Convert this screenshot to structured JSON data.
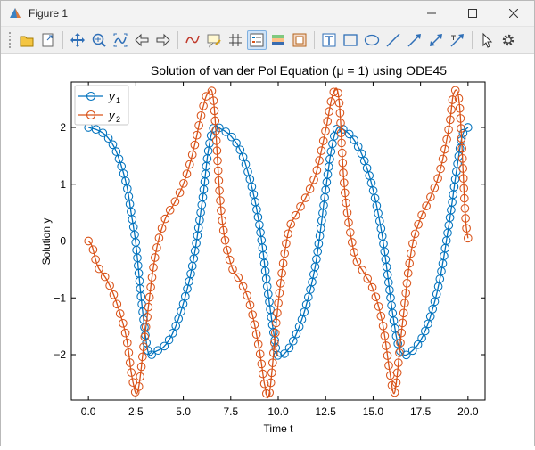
{
  "window": {
    "title": "Figure 1",
    "controls": {
      "minimize": "minimize",
      "maximize": "maximize",
      "close": "close"
    }
  },
  "toolbar": {
    "items": [
      {
        "name": "open-file-icon"
      },
      {
        "name": "save-figure-icon"
      },
      {
        "name": "pan-icon"
      },
      {
        "name": "zoom-in-icon"
      },
      {
        "name": "autoscale-icon"
      },
      {
        "name": "back-icon"
      },
      {
        "name": "forward-icon"
      },
      {
        "name": "data-cursor-icon"
      },
      {
        "name": "annotate-icon"
      },
      {
        "name": "grid-icon"
      },
      {
        "name": "legend-icon",
        "active": true
      },
      {
        "name": "colorbar-icon"
      },
      {
        "name": "border-icon"
      },
      {
        "name": "textbox-icon"
      },
      {
        "name": "rectangle-icon"
      },
      {
        "name": "ellipse-icon"
      },
      {
        "name": "line-icon"
      },
      {
        "name": "arrow-icon"
      },
      {
        "name": "double-arrow-icon"
      },
      {
        "name": "text-arrow-icon"
      },
      {
        "name": "select-pointer-icon"
      },
      {
        "name": "settings-gear-icon"
      }
    ]
  },
  "colors": {
    "series1": "#0072BD",
    "series2": "#D95319"
  },
  "chart_data": {
    "type": "line",
    "title": "Solution of van der Pol Equation (μ = 1) using ODE45",
    "xlabel": "Time t",
    "ylabel": "Solution y",
    "xlim": [
      -0.9,
      20.9
    ],
    "ylim": [
      -2.8,
      2.8
    ],
    "xticks": [
      0,
      2.5,
      5,
      7.5,
      10,
      12.5,
      15,
      17.5,
      20
    ],
    "xtick_labels": [
      "0.0",
      "2.5",
      "5.0",
      "7.5",
      "10.0",
      "12.5",
      "15.0",
      "17.5",
      "20.0"
    ],
    "yticks": [
      -2,
      -1,
      0,
      1,
      2
    ],
    "ytick_labels": [
      "−2",
      "−1",
      "0",
      "1",
      "2"
    ],
    "legend": {
      "position": "top-left",
      "entries": [
        {
          "base": "y",
          "sub": "1"
        },
        {
          "base": "y",
          "sub": "2"
        }
      ]
    },
    "marker": "open-circle",
    "series": [
      {
        "name": "y1",
        "points": [
          [
            0,
            2
          ],
          [
            0.5,
            1.95
          ],
          [
            1,
            1.83
          ],
          [
            1.5,
            1.55
          ],
          [
            2,
            1.0
          ],
          [
            2.25,
            0.5
          ],
          [
            2.5,
            -0.05
          ],
          [
            2.75,
            -0.9
          ],
          [
            3,
            -1.65
          ],
          [
            3.2,
            -2.0
          ],
          [
            3.5,
            -1.95
          ],
          [
            4,
            -1.85
          ],
          [
            4.5,
            -1.58
          ],
          [
            5,
            -1.1
          ],
          [
            5.5,
            -0.4
          ],
          [
            6,
            0.7
          ],
          [
            6.3,
            1.55
          ],
          [
            6.6,
            2.0
          ],
          [
            7,
            1.97
          ],
          [
            7.5,
            1.85
          ],
          [
            8,
            1.6
          ],
          [
            8.5,
            1.1
          ],
          [
            9,
            0.3
          ],
          [
            9.5,
            -1.0
          ],
          [
            9.8,
            -1.7
          ],
          [
            10,
            -2.02
          ],
          [
            10.5,
            -1.92
          ],
          [
            11,
            -1.6
          ],
          [
            11.5,
            -1.1
          ],
          [
            12,
            -0.35
          ],
          [
            12.5,
            0.9
          ],
          [
            12.8,
            1.6
          ],
          [
            13.1,
            1.98
          ],
          [
            13.5,
            1.95
          ],
          [
            14,
            1.78
          ],
          [
            14.5,
            1.45
          ],
          [
            15,
            0.9
          ],
          [
            15.5,
            0.05
          ],
          [
            16,
            -1.2
          ],
          [
            16.3,
            -1.8
          ],
          [
            16.6,
            -2.0
          ],
          [
            17,
            -1.95
          ],
          [
            17.5,
            -1.75
          ],
          [
            18,
            -1.35
          ],
          [
            18.5,
            -0.7
          ],
          [
            19,
            0.3
          ],
          [
            19.4,
            1.25
          ],
          [
            19.7,
            1.85
          ],
          [
            20,
            2.0
          ]
        ]
      },
      {
        "name": "y2",
        "points": [
          [
            0,
            0
          ],
          [
            0.2,
            -0.1
          ],
          [
            0.5,
            -0.45
          ],
          [
            1,
            -0.7
          ],
          [
            1.5,
            -1.1
          ],
          [
            2,
            -1.7
          ],
          [
            2.3,
            -2.4
          ],
          [
            2.6,
            -2.65
          ],
          [
            3,
            -1.6
          ],
          [
            3.5,
            -0.3
          ],
          [
            4,
            0.35
          ],
          [
            4.5,
            0.65
          ],
          [
            5,
            1.0
          ],
          [
            5.5,
            1.55
          ],
          [
            6,
            2.3
          ],
          [
            6.3,
            2.6
          ],
          [
            6.6,
            2.45
          ],
          [
            7,
            0.5
          ],
          [
            7.5,
            -0.4
          ],
          [
            8,
            -0.7
          ],
          [
            8.5,
            -1.1
          ],
          [
            9,
            -1.9
          ],
          [
            9.3,
            -2.55
          ],
          [
            9.55,
            -2.65
          ],
          [
            10,
            -1.1
          ],
          [
            10.5,
            0.1
          ],
          [
            11,
            0.5
          ],
          [
            11.5,
            0.8
          ],
          [
            12,
            1.2
          ],
          [
            12.5,
            1.95
          ],
          [
            12.9,
            2.6
          ],
          [
            13.2,
            2.5
          ],
          [
            13.5,
            0.9
          ],
          [
            14,
            -0.2
          ],
          [
            14.5,
            -0.55
          ],
          [
            15,
            -0.85
          ],
          [
            15.5,
            -1.45
          ],
          [
            15.9,
            -2.35
          ],
          [
            16.15,
            -2.65
          ],
          [
            16.5,
            -1.6
          ],
          [
            17,
            -0.2
          ],
          [
            17.5,
            0.4
          ],
          [
            18,
            0.75
          ],
          [
            18.5,
            1.2
          ],
          [
            19,
            2.0
          ],
          [
            19.25,
            2.6
          ],
          [
            19.55,
            2.4
          ],
          [
            19.85,
            0.5
          ],
          [
            20,
            0.05
          ]
        ]
      }
    ]
  }
}
